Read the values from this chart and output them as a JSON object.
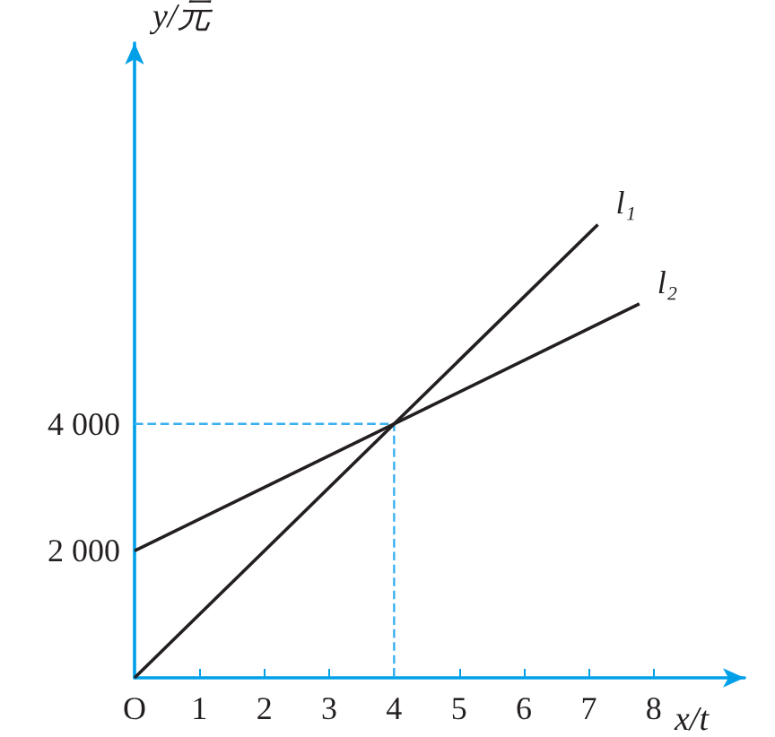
{
  "chart_data": {
    "type": "line",
    "xlabel": "x/t",
    "ylabel": "y/元",
    "xlim": [
      0,
      9.4
    ],
    "ylim": [
      0,
      10000
    ],
    "xticks": [
      {
        "value": 0,
        "label": "O"
      },
      1,
      2,
      3,
      4,
      5,
      6,
      7,
      8
    ],
    "yticks": [
      {
        "value": 2000,
        "label": "2 000"
      },
      {
        "value": 4000,
        "label": "4 000"
      }
    ],
    "series": [
      {
        "name": "l₁",
        "color": "#231f20",
        "x": [
          0,
          7.14
        ],
        "values": [
          0,
          7140
        ]
      },
      {
        "name": "l₂",
        "color": "#231f20",
        "x": [
          0,
          7.78
        ],
        "values": [
          2000,
          5890
        ]
      },
      {
        "type": "line",
        "color": "#3ab0f0",
        "line_style": "dashed",
        "x": [
          0,
          4,
          4
        ],
        "values": [
          4000,
          4000,
          0
        ]
      }
    ]
  }
}
